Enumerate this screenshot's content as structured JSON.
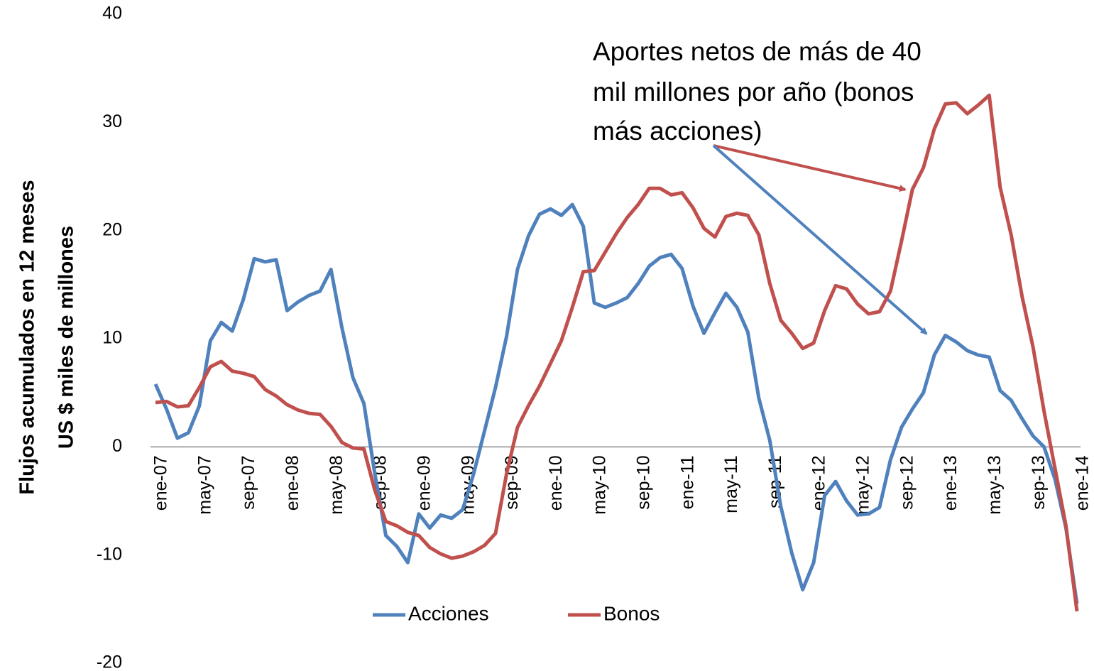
{
  "chart_data": {
    "type": "line",
    "y_axis_label": [
      "Flujos acumulados en 12 meses",
      "US $ miles de millones"
    ],
    "annotation": [
      "Aportes netos de más de 40",
      "mil millones por año (bonos",
      "más acciones)"
    ],
    "categories": [
      "ene-07",
      null,
      null,
      null,
      "may-07",
      null,
      null,
      null,
      "sep-07",
      null,
      null,
      null,
      "ene-08",
      null,
      null,
      null,
      "may-08",
      null,
      null,
      null,
      "sep-08",
      null,
      null,
      null,
      "ene-09",
      null,
      null,
      null,
      "may-09",
      null,
      null,
      null,
      "sep-09",
      null,
      null,
      null,
      "ene-10",
      null,
      null,
      null,
      "may-10",
      null,
      null,
      null,
      "sep-10",
      null,
      null,
      null,
      "ene-11",
      null,
      null,
      null,
      "may-11",
      null,
      null,
      null,
      "sep-11",
      null,
      null,
      null,
      "ene-12",
      null,
      null,
      null,
      "may-12",
      null,
      null,
      null,
      "sep-12",
      null,
      null,
      null,
      "ene-13",
      null,
      null,
      null,
      "may-13",
      null,
      null,
      null,
      "sep-13",
      null,
      null,
      null,
      "ene-14"
    ],
    "series": [
      {
        "name": "Acciones",
        "color": "#4f81bd",
        "values": [
          5.8,
          3.5,
          0.8,
          1.3,
          3.8,
          9.8,
          11.5,
          10.7,
          13.6,
          17.4,
          17.1,
          17.3,
          12.6,
          13.4,
          14.0,
          14.4,
          16.4,
          11.0,
          6.4,
          4.0,
          -2.5,
          -8.2,
          -9.2,
          -10.7,
          -6.2,
          -7.5,
          -6.3,
          -6.6,
          -5.8,
          -2.5,
          1.5,
          5.5,
          10.2,
          16.4,
          19.5,
          21.5,
          22.0,
          21.4,
          22.4,
          20.4,
          13.3,
          12.9,
          13.3,
          13.8,
          15.1,
          16.7,
          17.5,
          17.8,
          16.5,
          13.0,
          10.5,
          12.4,
          14.2,
          12.9,
          10.6,
          4.5,
          0.6,
          -5.5,
          -9.8,
          -13.2,
          -10.7,
          -4.5,
          -3.2,
          -5.0,
          -6.3,
          -6.2,
          -5.6,
          -1.2,
          1.8,
          3.5,
          5.0,
          8.5,
          10.3,
          9.7,
          8.9,
          8.5,
          8.3,
          5.2,
          4.3,
          2.6,
          1.0,
          0.0,
          -3.0,
          -7.5,
          -14.5
        ]
      },
      {
        "name": "Bonos",
        "color": "#c0504d",
        "values": [
          4.1,
          4.2,
          3.7,
          3.8,
          5.5,
          7.4,
          7.9,
          7.0,
          6.8,
          6.5,
          5.3,
          4.7,
          3.9,
          3.4,
          3.1,
          3.0,
          1.9,
          0.4,
          -0.1,
          -0.2,
          -4.0,
          -6.9,
          -7.3,
          -7.9,
          -8.2,
          -9.3,
          -9.9,
          -10.3,
          -10.1,
          -9.7,
          -9.1,
          -8.0,
          -2.5,
          1.8,
          3.8,
          5.6,
          7.7,
          9.8,
          12.9,
          16.2,
          16.3,
          18.0,
          19.7,
          21.2,
          22.4,
          23.9,
          23.9,
          23.3,
          23.5,
          22.1,
          20.2,
          19.4,
          21.3,
          21.6,
          21.4,
          19.6,
          15.1,
          11.7,
          10.5,
          9.1,
          9.6,
          12.6,
          14.9,
          14.6,
          13.2,
          12.3,
          12.5,
          14.4,
          19.0,
          23.8,
          25.8,
          29.4,
          31.7,
          31.8,
          30.8,
          31.6,
          32.5,
          24.0,
          19.6,
          13.9,
          9.2,
          3.3,
          -2.0,
          -7.3,
          -15.2
        ]
      }
    ],
    "ylim": [
      -20,
      40
    ],
    "yticks": [
      -20,
      -10,
      0,
      10,
      20,
      30,
      40
    ],
    "grid": false,
    "legend": "bottom"
  }
}
